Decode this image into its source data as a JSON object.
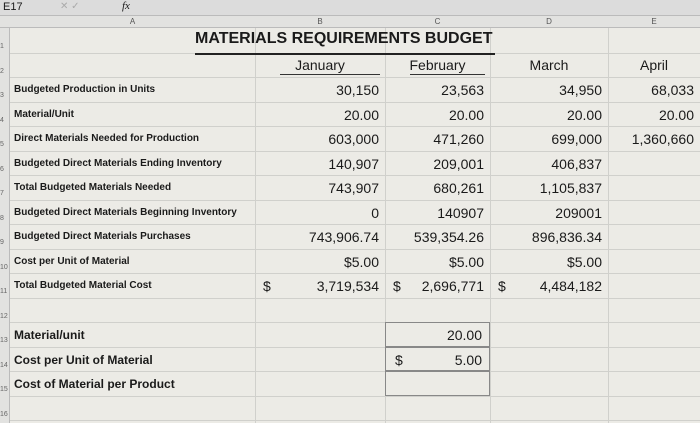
{
  "formula_bar": {
    "cell": "E17",
    "fx": "fx"
  },
  "columns": [
    "A",
    "B",
    "C",
    "D",
    "E"
  ],
  "row_numbers": [
    "1",
    "2",
    "3",
    "4",
    "5",
    "6",
    "7",
    "8",
    "9",
    "10",
    "11",
    "12",
    "13",
    "14",
    "15",
    "16"
  ],
  "title": "MATERIALS REQUIREMENTS BUDGET",
  "months": [
    "January",
    "February",
    "March",
    "April"
  ],
  "budget_rows": [
    {
      "label": "Budgeted Production in Units",
      "values": [
        "30,150",
        "23,563",
        "34,950",
        "68,033"
      ]
    },
    {
      "label": "Material/Unit",
      "values": [
        "20.00",
        "20.00",
        "20.00",
        "20.00"
      ]
    },
    {
      "label": "Direct Materials Needed for Production",
      "values": [
        "603,000",
        "471,260",
        "699,000",
        "1,360,660"
      ]
    },
    {
      "label": "Budgeted Direct Materials Ending Inventory",
      "values": [
        "140,907",
        "209,001",
        "406,837"
      ]
    },
    {
      "label": "Total Budgeted Materials Needed",
      "values": [
        "743,907",
        "680,261",
        "1,105,837"
      ]
    },
    {
      "label": "Budgeted Direct Materials Beginning Inventory",
      "values": [
        "0",
        "140907",
        "209001"
      ]
    },
    {
      "label": "Budgeted Direct Materials Purchases",
      "values": [
        "743,906.74",
        "539,354.26",
        "896,836.34"
      ]
    },
    {
      "label": "Cost per Unit of Material",
      "values": [
        "$5.00",
        "$5.00",
        "$5.00"
      ]
    },
    {
      "label": "Total Budgeted Material Cost",
      "currency": "$",
      "values": [
        "3,719,534",
        "2,696,771",
        "4,484,182"
      ]
    }
  ],
  "product_rows": [
    {
      "label": "Material/unit",
      "value": "20.00"
    },
    {
      "label": "Cost per Unit of Material",
      "currency": "$",
      "value": "5.00"
    },
    {
      "label": "Cost of Material per Product"
    }
  ]
}
